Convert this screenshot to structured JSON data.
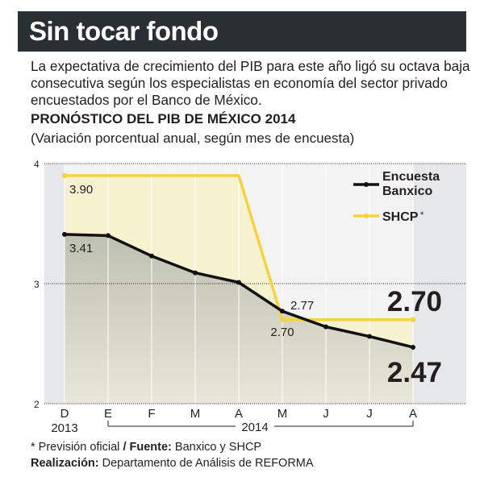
{
  "header": {
    "title": "Sin tocar fondo"
  },
  "lede": "La expectativa de crecimiento del PIB para este año ligó su octava baja consecutiva según los especialistas en economía del sector privado encuestados por el Banco de México.",
  "chart_data": {
    "type": "line",
    "title": "PRONÓSTICO DEL PIB DE MÉXICO 2014",
    "subtitle": "(Variación porcentual anual, según mes de encuesta)",
    "xlabel": "",
    "ylabel": "",
    "categories": [
      "D",
      "E",
      "F",
      "M",
      "A",
      "M",
      "J",
      "J",
      "A"
    ],
    "year_labels": {
      "first": "2013",
      "rest": "2014"
    },
    "ylim": [
      2,
      4
    ],
    "yticks": [
      "2",
      "3",
      "4"
    ],
    "grid": true,
    "legend_position": "top-right",
    "series": [
      {
        "name": "Encuesta Banxico",
        "color": "#111111",
        "values": [
          3.41,
          3.4,
          3.23,
          3.09,
          3.01,
          2.77,
          2.64,
          2.56,
          2.47
        ],
        "labels": [
          {
            "index": 0,
            "text": "3.41"
          },
          {
            "index": 5,
            "text": "2.77"
          },
          {
            "index": 8,
            "text": "2.47"
          }
        ]
      },
      {
        "name": "SHCP",
        "legend_suffix": "*",
        "color": "#f5d33d",
        "values": [
          3.9,
          3.9,
          3.9,
          3.9,
          3.9,
          2.7,
          2.7,
          2.7,
          2.7
        ],
        "labels": [
          {
            "index": 0,
            "text": "3.90"
          },
          {
            "index": 5,
            "text": "2.70"
          },
          {
            "index": 8,
            "text": "2.70"
          }
        ]
      }
    ]
  },
  "footer": {
    "footnote_prefix": "* Previsión oficial",
    "separator": " / ",
    "source_label": "Fuente:",
    "source_value": " Banxico y SHCP",
    "credit_label": "Realización:",
    "credit_value": " Departamento de Análisis de REFORMA"
  }
}
